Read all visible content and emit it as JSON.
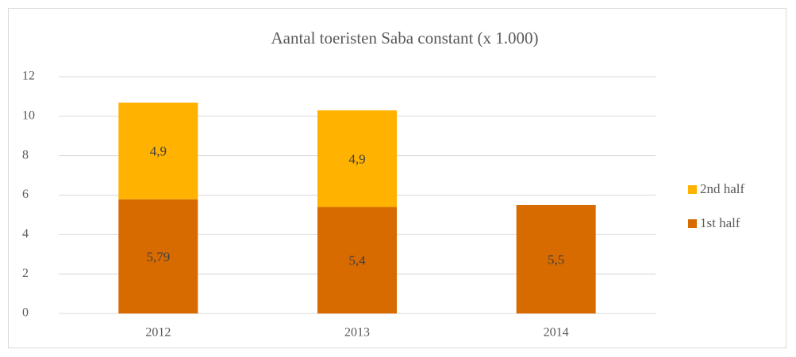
{
  "chart_data": {
    "type": "stacked_bar",
    "title": "Aantal toeristen Saba constant (x 1.000)",
    "categories": [
      "2012",
      "2013",
      "2014"
    ],
    "series": [
      {
        "name": "1st half",
        "color": "#d86b00",
        "values": [
          5.79,
          5.4,
          5.5
        ],
        "value_labels": [
          "5,79",
          "5,4",
          "5,5"
        ]
      },
      {
        "name": "2nd half",
        "color": "#ffb200",
        "values": [
          4.9,
          4.9,
          null
        ],
        "value_labels": [
          "4,9",
          "4,9",
          null
        ]
      }
    ],
    "ylim": [
      0,
      12
    ],
    "yticks": [
      0,
      2,
      4,
      6,
      8,
      10,
      12
    ],
    "grid": true,
    "legend": "right"
  }
}
